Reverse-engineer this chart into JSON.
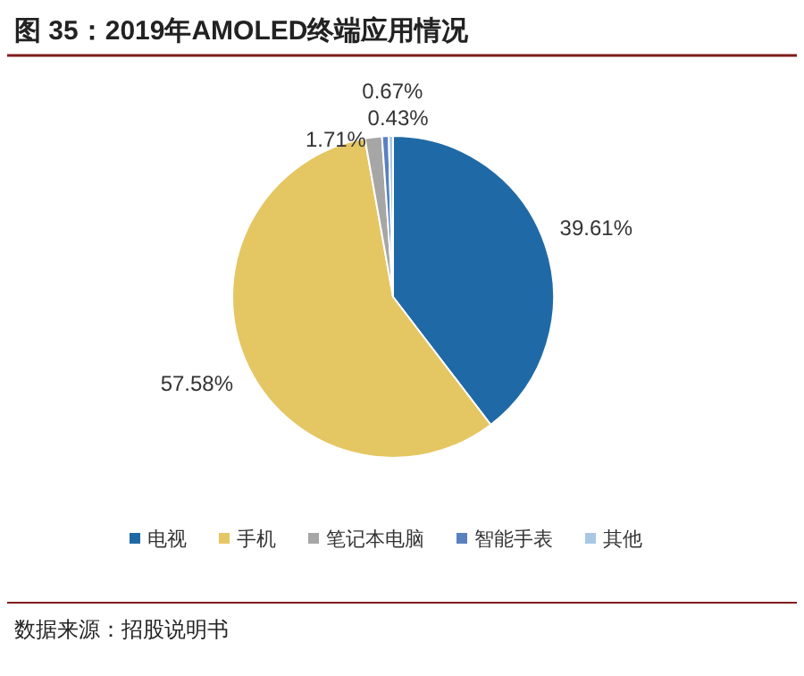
{
  "chart_data": {
    "type": "pie",
    "title": "图 35：2019年AMOLED终端应用情况",
    "categories": [
      "电视",
      "手机",
      "笔记本电脑",
      "智能手表",
      "其他"
    ],
    "values": [
      39.61,
      57.58,
      1.71,
      0.67,
      0.43
    ],
    "value_labels": [
      "39.61%",
      "57.58%",
      "1.71%",
      "0.67%",
      "0.43%"
    ],
    "colors": [
      "#1f6aa6",
      "#e4c663",
      "#a6a6a6",
      "#5a80c0",
      "#a8c8e4"
    ],
    "legend": "bottom",
    "annotations": [
      "数据来源：招股说明书"
    ]
  }
}
